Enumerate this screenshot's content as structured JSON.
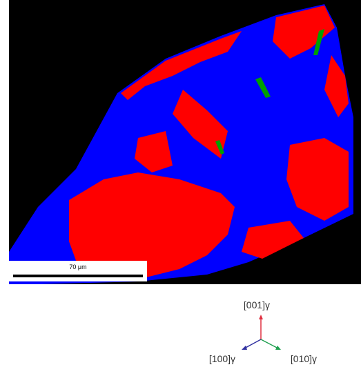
{
  "scale_bar": {
    "label": "70 μm"
  },
  "axes": {
    "up": "[001]γ",
    "left": "[100]γ",
    "right": "[010]γ"
  }
}
